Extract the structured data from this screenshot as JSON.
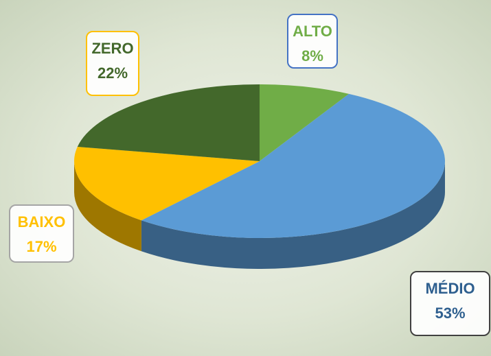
{
  "chart_data": {
    "type": "pie",
    "categories": [
      "ALTO",
      "MÉDIO",
      "BAIXO",
      "ZERO"
    ],
    "series": [
      {
        "values": [
          8,
          53,
          17,
          22
        ],
        "value_labels": [
          "8%",
          "53%",
          "17%",
          "22%"
        ],
        "colors": [
          "#70ad47",
          "#5b9bd5",
          "#ffc000",
          "#43682b"
        ]
      }
    ]
  }
}
